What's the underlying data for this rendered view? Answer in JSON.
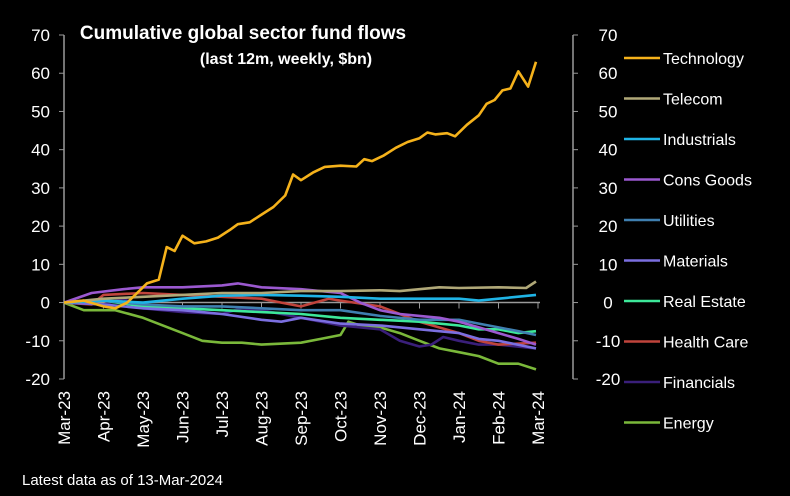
{
  "chart_data": {
    "type": "line",
    "title": "Cumulative global sector fund flows",
    "subtitle": "(last 12m, weekly, $bn)",
    "footnote": "Latest data as of 13-Mar-2024",
    "ylim": [
      -20,
      70
    ],
    "yticks": [
      70,
      60,
      50,
      40,
      30,
      20,
      10,
      0,
      -10,
      -20
    ],
    "xticks": [
      "Mar-23",
      "Apr-23",
      "May-23",
      "Jun-23",
      "Jul-23",
      "Aug-23",
      "Sep-23",
      "Oct-23",
      "Nov-23",
      "Dec-23",
      "Jan-24",
      "Feb-24",
      "Mar-24"
    ],
    "x_unit": "months since Mar-23",
    "legend_position": "right",
    "series": [
      {
        "name": "Technology",
        "color": "#f5b21b",
        "points": [
          [
            0,
            0
          ],
          [
            0.5,
            0.5
          ],
          [
            1,
            -1
          ],
          [
            1.3,
            -1.5
          ],
          [
            1.6,
            0
          ],
          [
            1.9,
            3
          ],
          [
            2.1,
            5
          ],
          [
            2.4,
            6
          ],
          [
            2.6,
            14.5
          ],
          [
            2.8,
            13.5
          ],
          [
            3,
            17.5
          ],
          [
            3.3,
            15.5
          ],
          [
            3.6,
            16
          ],
          [
            3.9,
            17
          ],
          [
            4.2,
            19
          ],
          [
            4.4,
            20.5
          ],
          [
            4.7,
            21
          ],
          [
            5,
            23
          ],
          [
            5.3,
            25
          ],
          [
            5.6,
            28
          ],
          [
            5.8,
            33.5
          ],
          [
            6,
            32
          ],
          [
            6.3,
            34
          ],
          [
            6.6,
            35.5
          ],
          [
            7,
            35.8
          ],
          [
            7.4,
            35.6
          ],
          [
            7.6,
            37.5
          ],
          [
            7.8,
            37
          ],
          [
            8.1,
            38.5
          ],
          [
            8.4,
            40.5
          ],
          [
            8.7,
            42
          ],
          [
            9,
            43
          ],
          [
            9.2,
            44.5
          ],
          [
            9.4,
            44
          ],
          [
            9.7,
            44.3
          ],
          [
            9.9,
            43.5
          ],
          [
            10.2,
            46.5
          ],
          [
            10.5,
            49
          ],
          [
            10.7,
            52
          ],
          [
            10.9,
            53
          ],
          [
            11.1,
            55.5
          ],
          [
            11.3,
            56
          ],
          [
            11.5,
            60.5
          ],
          [
            11.75,
            56.5
          ],
          [
            11.95,
            63
          ]
        ]
      },
      {
        "name": "Telecom",
        "color": "#b0a878",
        "points": [
          [
            0,
            0
          ],
          [
            1,
            1
          ],
          [
            2,
            1.5
          ],
          [
            3,
            2
          ],
          [
            4,
            2.5
          ],
          [
            5,
            2.5
          ],
          [
            6,
            3
          ],
          [
            7,
            3
          ],
          [
            8,
            3.2
          ],
          [
            8.5,
            3
          ],
          [
            9,
            3.5
          ],
          [
            9.5,
            4
          ],
          [
            10,
            3.8
          ],
          [
            11,
            4
          ],
          [
            11.7,
            3.8
          ],
          [
            11.95,
            5.5
          ]
        ]
      },
      {
        "name": "Industrials",
        "color": "#1fb4e6",
        "points": [
          [
            0,
            0
          ],
          [
            1,
            0.5
          ],
          [
            2,
            0
          ],
          [
            3,
            1
          ],
          [
            4,
            1.8
          ],
          [
            5,
            2
          ],
          [
            6,
            1.8
          ],
          [
            7,
            1.5
          ],
          [
            8,
            1
          ],
          [
            9,
            1
          ],
          [
            10,
            1
          ],
          [
            10.5,
            0.5
          ],
          [
            11,
            1
          ],
          [
            11.95,
            2
          ]
        ]
      },
      {
        "name": "Cons Goods",
        "color": "#9b59d0",
        "points": [
          [
            0,
            0
          ],
          [
            0.7,
            2.5
          ],
          [
            1.5,
            3.5
          ],
          [
            2,
            4
          ],
          [
            3,
            4
          ],
          [
            4,
            4.5
          ],
          [
            4.4,
            5
          ],
          [
            5,
            4
          ],
          [
            6,
            3.5
          ],
          [
            7,
            2.5
          ],
          [
            7.5,
            0
          ],
          [
            8,
            -2
          ],
          [
            8.5,
            -3
          ],
          [
            9,
            -3.5
          ],
          [
            9.5,
            -4
          ],
          [
            10,
            -5
          ],
          [
            10.5,
            -6.5
          ],
          [
            11,
            -8
          ],
          [
            11.5,
            -9.5
          ],
          [
            11.95,
            -11
          ]
        ]
      },
      {
        "name": "Utilities",
        "color": "#3f7fb0",
        "points": [
          [
            0,
            0
          ],
          [
            1,
            0.5
          ],
          [
            2,
            -0.5
          ],
          [
            3,
            -1
          ],
          [
            4,
            -1
          ],
          [
            5,
            -1.5
          ],
          [
            6,
            -2
          ],
          [
            7,
            -2
          ],
          [
            8,
            -3.5
          ],
          [
            9,
            -4.5
          ],
          [
            10,
            -4.5
          ],
          [
            10.5,
            -5.5
          ],
          [
            11,
            -6.5
          ],
          [
            11.5,
            -7.5
          ],
          [
            11.95,
            -8.5
          ]
        ]
      },
      {
        "name": "Materials",
        "color": "#7b6fe0",
        "points": [
          [
            0,
            0
          ],
          [
            1,
            -0.5
          ],
          [
            2,
            -1.5
          ],
          [
            3,
            -2
          ],
          [
            4,
            -3
          ],
          [
            5,
            -4.5
          ],
          [
            5.5,
            -5
          ],
          [
            6,
            -4
          ],
          [
            7,
            -5.5
          ],
          [
            8,
            -6
          ],
          [
            9,
            -7
          ],
          [
            10,
            -8
          ],
          [
            10.5,
            -9.5
          ],
          [
            11,
            -10
          ],
          [
            11.95,
            -12
          ]
        ]
      },
      {
        "name": "Real Estate",
        "color": "#3de89a",
        "points": [
          [
            0,
            0
          ],
          [
            1,
            0.5
          ],
          [
            2,
            -1
          ],
          [
            3,
            -1.5
          ],
          [
            4,
            -2
          ],
          [
            5,
            -2.5
          ],
          [
            6,
            -3
          ],
          [
            7,
            -4
          ],
          [
            8,
            -4.5
          ],
          [
            9,
            -5
          ],
          [
            10,
            -6
          ],
          [
            10.5,
            -7
          ],
          [
            11,
            -7
          ],
          [
            11.5,
            -8
          ],
          [
            11.95,
            -7.5
          ]
        ]
      },
      {
        "name": "Health Care",
        "color": "#c0443c",
        "points": [
          [
            0,
            0
          ],
          [
            0.7,
            -0.5
          ],
          [
            1,
            2
          ],
          [
            2,
            2.5
          ],
          [
            3,
            2
          ],
          [
            4,
            1.5
          ],
          [
            5,
            1
          ],
          [
            5.5,
            0
          ],
          [
            6,
            -1
          ],
          [
            6.7,
            1
          ],
          [
            7,
            0.5
          ],
          [
            8,
            -1
          ],
          [
            8.5,
            -3
          ],
          [
            9,
            -5
          ],
          [
            10,
            -8
          ],
          [
            10.5,
            -10
          ],
          [
            11,
            -11
          ],
          [
            11.95,
            -10.5
          ]
        ]
      },
      {
        "name": "Financials",
        "color": "#3a1f7a",
        "points": [
          [
            0,
            0
          ],
          [
            1,
            -0.5
          ],
          [
            1.5,
            1
          ],
          [
            2,
            -1.5
          ],
          [
            3,
            -2.5
          ],
          [
            4,
            -3
          ],
          [
            4.5,
            -1.5
          ],
          [
            5,
            -2
          ],
          [
            6,
            -4
          ],
          [
            7,
            -6
          ],
          [
            8,
            -7
          ],
          [
            8.5,
            -10
          ],
          [
            9,
            -11.5
          ],
          [
            9.3,
            -11
          ],
          [
            9.6,
            -9
          ],
          [
            10,
            -10
          ],
          [
            10.5,
            -11
          ],
          [
            11,
            -11
          ],
          [
            11.95,
            -12
          ]
        ]
      },
      {
        "name": "Energy",
        "color": "#7ab83a",
        "points": [
          [
            0,
            0
          ],
          [
            0.5,
            -2
          ],
          [
            1,
            -2
          ],
          [
            1.3,
            -2
          ],
          [
            2,
            -4
          ],
          [
            3,
            -8
          ],
          [
            3.5,
            -10
          ],
          [
            4,
            -10.5
          ],
          [
            4.5,
            -10.5
          ],
          [
            5,
            -11
          ],
          [
            6,
            -10.5
          ],
          [
            6.5,
            -9.5
          ],
          [
            7,
            -8.5
          ],
          [
            7.2,
            -5
          ],
          [
            7.5,
            -6
          ],
          [
            8,
            -6.5
          ],
          [
            8.5,
            -8
          ],
          [
            9,
            -10
          ],
          [
            9.5,
            -12
          ],
          [
            10,
            -13
          ],
          [
            10.5,
            -14
          ],
          [
            11,
            -16
          ],
          [
            11.5,
            -16
          ],
          [
            11.95,
            -17.5
          ]
        ]
      }
    ]
  }
}
